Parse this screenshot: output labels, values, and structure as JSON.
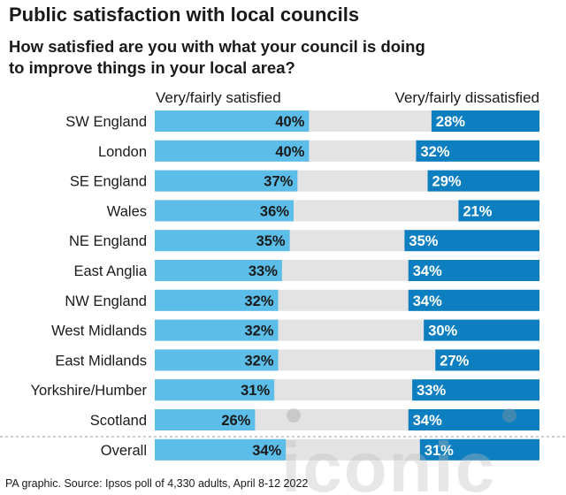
{
  "chart_data": {
    "type": "bar",
    "title": "Public satisfaction with local councils",
    "subtitle": "How satisfied are you with what your council is doing to improve things in your local area?",
    "subtitle_lines": [
      "How satisfied are you with what your council is doing",
      "to improve things in your local area?"
    ],
    "categories": [
      "SW England",
      "London",
      "SE England",
      "Wales",
      "NE England",
      "East Anglia",
      "NW England",
      "West Midlands",
      "East Midlands",
      "Yorkshire/Humber",
      "Scotland",
      "Overall"
    ],
    "series": [
      {
        "name": "Very/fairly satisfied",
        "values": [
          40,
          40,
          37,
          36,
          35,
          33,
          32,
          32,
          32,
          31,
          26,
          34
        ],
        "labels": [
          "40%",
          "40%",
          "37%",
          "36%",
          "35%",
          "33%",
          "32%",
          "32%",
          "32%",
          "31%",
          "26%",
          "34%"
        ]
      },
      {
        "name": "Very/fairly dissatisfied",
        "values": [
          28,
          32,
          29,
          21,
          35,
          34,
          34,
          30,
          27,
          33,
          34,
          31
        ],
        "labels": [
          "28%",
          "32%",
          "29%",
          "21%",
          "35%",
          "34%",
          "34%",
          "30%",
          "27%",
          "33%",
          "34%",
          "31%"
        ]
      }
    ],
    "xlim": [
      0,
      100
    ],
    "source": "PA graphic. Source: Ipsos poll of 4,330 adults, April 8-12 2022",
    "watermark": "iconic",
    "colors": {
      "satisfied": "#5bbde8",
      "dissatisfied": "#0d7fc0",
      "track": "#e3e3e3",
      "label_dark": "#1a1a1a",
      "label_light": "#ffffff"
    }
  }
}
